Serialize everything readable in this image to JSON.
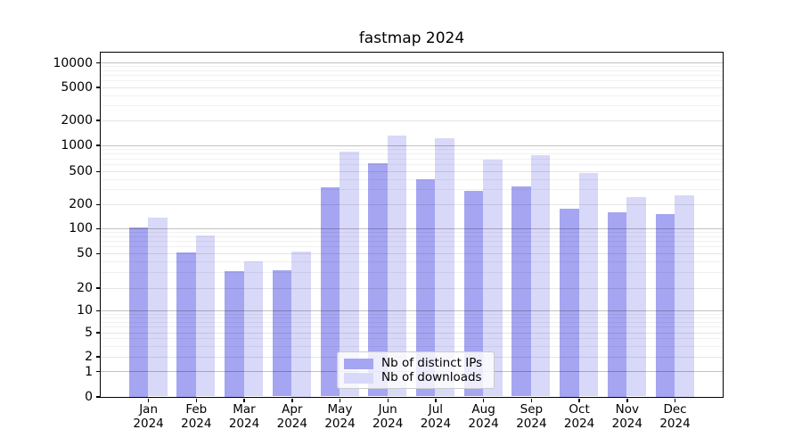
{
  "chart_data": {
    "type": "bar",
    "title": "fastmap 2024",
    "categories": [
      "Jan 2024",
      "Feb 2024",
      "Mar 2024",
      "Apr 2024",
      "May 2024",
      "Jun 2024",
      "Jul 2024",
      "Aug 2024",
      "Sep 2024",
      "Oct 2024",
      "Nov 2024",
      "Dec 2024"
    ],
    "series": [
      {
        "name": "Nb of distinct IPs",
        "color": "#a5a5f2",
        "values": [
          102,
          51,
          31,
          32,
          320,
          620,
          400,
          290,
          330,
          175,
          160,
          150
        ]
      },
      {
        "name": "Nb of downloads",
        "color": "#d8d8f8",
        "values": [
          135,
          82,
          40,
          53,
          830,
          1300,
          1200,
          670,
          760,
          475,
          245,
          255
        ]
      }
    ],
    "xlabel": "",
    "ylabel": "",
    "yscale": "symlog",
    "yticks": [
      0,
      1,
      2,
      5,
      10,
      20,
      50,
      100,
      200,
      500,
      1000,
      2000,
      5000,
      10000
    ],
    "ylim": [
      0,
      13400
    ],
    "grid": "horizontal major and minor gridlines",
    "legend_position": "lower center"
  }
}
